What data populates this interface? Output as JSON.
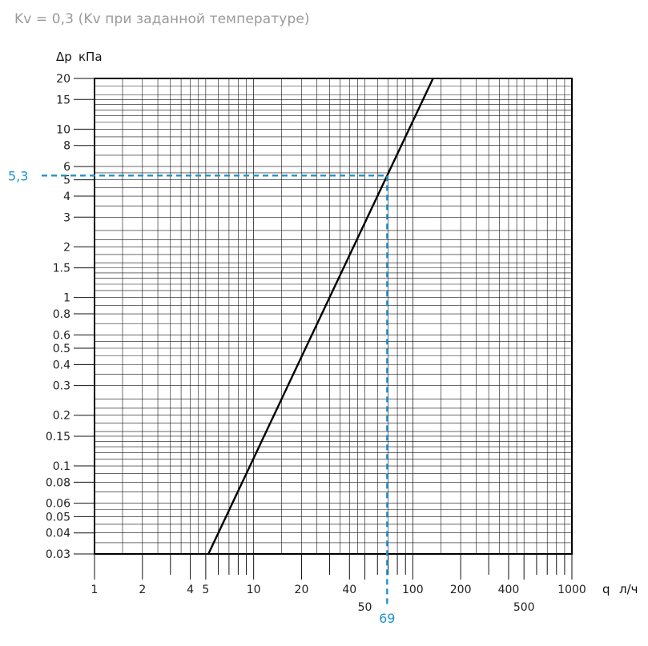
{
  "chart_data": {
    "type": "line",
    "title": "Kv = 0,3 (Kv при заданной температуре)",
    "x_axis": {
      "symbol": "q",
      "unit": "л/ч",
      "scale": "log",
      "range": [
        1,
        1000
      ],
      "tick_labels_upper": [
        {
          "value": 1,
          "label": "1"
        },
        {
          "value": 2,
          "label": "2"
        },
        {
          "value": 4,
          "label": "4"
        },
        {
          "value": 5,
          "label": "5"
        },
        {
          "value": 10,
          "label": "10"
        },
        {
          "value": 20,
          "label": "20"
        },
        {
          "value": 40,
          "label": "40"
        },
        {
          "value": 100,
          "label": "100"
        },
        {
          "value": 200,
          "label": "200"
        },
        {
          "value": 400,
          "label": "400"
        },
        {
          "value": 1000,
          "label": "1000"
        }
      ],
      "tick_labels_lower": [
        {
          "value": 50,
          "label": "50"
        },
        {
          "value": 500,
          "label": "500"
        }
      ]
    },
    "y_axis": {
      "symbol": "Δp",
      "unit": "кПа",
      "scale": "log",
      "range": [
        0.03,
        20
      ],
      "tick_labels": [
        {
          "value": 20,
          "label": "20"
        },
        {
          "value": 15,
          "label": "15"
        },
        {
          "value": 10,
          "label": "10"
        },
        {
          "value": 8,
          "label": "8"
        },
        {
          "value": 6,
          "label": "6"
        },
        {
          "value": 5,
          "label": "5"
        },
        {
          "value": 4,
          "label": "4"
        },
        {
          "value": 3,
          "label": "3"
        },
        {
          "value": 2,
          "label": "2"
        },
        {
          "value": 1.5,
          "label": "1.5"
        },
        {
          "value": 1,
          "label": "1"
        },
        {
          "value": 0.8,
          "label": "0.8"
        },
        {
          "value": 0.6,
          "label": "0.6"
        },
        {
          "value": 0.5,
          "label": "0.5"
        },
        {
          "value": 0.4,
          "label": "0.4"
        },
        {
          "value": 0.3,
          "label": "0.3"
        },
        {
          "value": 0.2,
          "label": "0.2"
        },
        {
          "value": 0.15,
          "label": "0.15"
        },
        {
          "value": 0.1,
          "label": "0.1"
        },
        {
          "value": 0.08,
          "label": "0.08"
        },
        {
          "value": 0.06,
          "label": "0.06"
        },
        {
          "value": 0.05,
          "label": "0.05"
        },
        {
          "value": 0.04,
          "label": "0.04"
        },
        {
          "value": 0.03,
          "label": "0.03"
        }
      ]
    },
    "grid": true,
    "series": [
      {
        "color": "#000000",
        "points": [
          {
            "x": 5.2,
            "y": 0.03
          },
          {
            "x": 134,
            "y": 20
          }
        ]
      }
    ],
    "highlight": {
      "color": "#1e93c9",
      "x": 69,
      "y": 5.3,
      "x_label": "69",
      "y_label": "5,3"
    }
  }
}
